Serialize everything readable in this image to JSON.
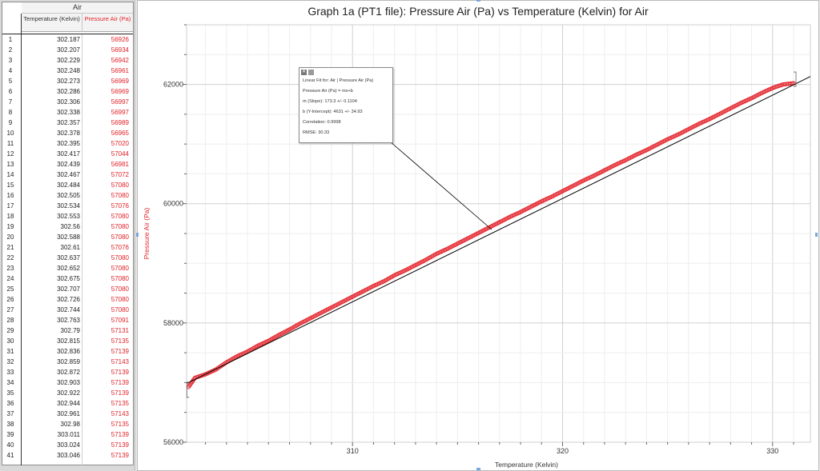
{
  "table": {
    "dataset_name": "Air",
    "col_temperature": "Temperature (Kelvin)",
    "col_pressure": "Pressure Air (Pa)",
    "rows": [
      {
        "n": "1",
        "t": "302.187",
        "p": "56926"
      },
      {
        "n": "2",
        "t": "302.207",
        "p": "56934"
      },
      {
        "n": "3",
        "t": "302.229",
        "p": "56942"
      },
      {
        "n": "4",
        "t": "302.248",
        "p": "56961"
      },
      {
        "n": "5",
        "t": "302.273",
        "p": "56969"
      },
      {
        "n": "6",
        "t": "302.286",
        "p": "56969"
      },
      {
        "n": "7",
        "t": "302.306",
        "p": "56997"
      },
      {
        "n": "8",
        "t": "302.338",
        "p": "56997"
      },
      {
        "n": "9",
        "t": "302.357",
        "p": "56989"
      },
      {
        "n": "10",
        "t": "302.378",
        "p": "56965"
      },
      {
        "n": "11",
        "t": "302.395",
        "p": "57020"
      },
      {
        "n": "12",
        "t": "302.417",
        "p": "57044"
      },
      {
        "n": "13",
        "t": "302.439",
        "p": "56981"
      },
      {
        "n": "14",
        "t": "302.467",
        "p": "57072"
      },
      {
        "n": "15",
        "t": "302.484",
        "p": "57080"
      },
      {
        "n": "16",
        "t": "302.505",
        "p": "57080"
      },
      {
        "n": "17",
        "t": "302.534",
        "p": "57076"
      },
      {
        "n": "18",
        "t": "302.553",
        "p": "57080"
      },
      {
        "n": "19",
        "t": "302.56",
        "p": "57080"
      },
      {
        "n": "20",
        "t": "302.588",
        "p": "57080"
      },
      {
        "n": "21",
        "t": "302.61",
        "p": "57076"
      },
      {
        "n": "22",
        "t": "302.637",
        "p": "57080"
      },
      {
        "n": "23",
        "t": "302.652",
        "p": "57080"
      },
      {
        "n": "24",
        "t": "302.675",
        "p": "57080"
      },
      {
        "n": "25",
        "t": "302.707",
        "p": "57080"
      },
      {
        "n": "26",
        "t": "302.726",
        "p": "57080"
      },
      {
        "n": "27",
        "t": "302.744",
        "p": "57080"
      },
      {
        "n": "28",
        "t": "302.763",
        "p": "57091"
      },
      {
        "n": "29",
        "t": "302.79",
        "p": "57131"
      },
      {
        "n": "30",
        "t": "302.815",
        "p": "57135"
      },
      {
        "n": "31",
        "t": "302.836",
        "p": "57139"
      },
      {
        "n": "32",
        "t": "302.859",
        "p": "57143"
      },
      {
        "n": "33",
        "t": "302.872",
        "p": "57139"
      },
      {
        "n": "34",
        "t": "302.903",
        "p": "57139"
      },
      {
        "n": "35",
        "t": "302.922",
        "p": "57139"
      },
      {
        "n": "36",
        "t": "302.944",
        "p": "57135"
      },
      {
        "n": "37",
        "t": "302.961",
        "p": "57143"
      },
      {
        "n": "38",
        "t": "302.98",
        "p": "57135"
      },
      {
        "n": "39",
        "t": "303.011",
        "p": "57139"
      },
      {
        "n": "40",
        "t": "303.024",
        "p": "57139"
      },
      {
        "n": "41",
        "t": "303.046",
        "p": "57139"
      }
    ]
  },
  "fit_box": {
    "line1": "Linear Fit for: Air | Pressure Air (Pa)",
    "line2": "Pressure Air (Pa) = mx+b",
    "line3": "m (Slope): 173.3 +/- 0.1104",
    "line4": "b (Y-Intercept): 4631 +/- 34.93",
    "line5": "Correlation: 0.9998",
    "line6": "RMSE: 30.33"
  },
  "chart_data": {
    "type": "scatter",
    "title": "Graph 1a (PT1 file): Pressure Air (Pa) vs Temperature (Kelvin) for Air",
    "xlabel": "Temperature (Kelvin)",
    "ylabel": "Pressure Air (Pa)",
    "xlim": [
      302.1,
      331.8
    ],
    "ylim": [
      56000,
      63000
    ],
    "xticks": [
      310,
      320,
      330
    ],
    "xtick_labels": [
      "310",
      "320",
      "330"
    ],
    "yticks": [
      56000,
      58000,
      60000,
      62000
    ],
    "ytick_labels": [
      "56000",
      "58000",
      "60000",
      "62000"
    ],
    "grid": true,
    "series": [
      {
        "name": "Pressure Air (Pa)",
        "color": "#e32027",
        "marker": "open-circle",
        "points": [
          [
            302.19,
            56926
          ],
          [
            302.5,
            57080
          ],
          [
            303.0,
            57139
          ],
          [
            303.5,
            57220
          ],
          [
            304.0,
            57340
          ],
          [
            304.5,
            57440
          ],
          [
            305.0,
            57520
          ],
          [
            305.5,
            57620
          ],
          [
            306.0,
            57700
          ],
          [
            306.5,
            57800
          ],
          [
            307.0,
            57890
          ],
          [
            307.5,
            57990
          ],
          [
            308.0,
            58080
          ],
          [
            308.5,
            58170
          ],
          [
            309.0,
            58260
          ],
          [
            309.5,
            58350
          ],
          [
            310.0,
            58440
          ],
          [
            310.5,
            58530
          ],
          [
            311.0,
            58620
          ],
          [
            311.5,
            58700
          ],
          [
            312.0,
            58800
          ],
          [
            312.5,
            58880
          ],
          [
            313.0,
            58970
          ],
          [
            313.5,
            59060
          ],
          [
            314.0,
            59160
          ],
          [
            314.5,
            59240
          ],
          [
            315.0,
            59330
          ],
          [
            315.5,
            59420
          ],
          [
            316.0,
            59510
          ],
          [
            316.5,
            59600
          ],
          [
            317.0,
            59690
          ],
          [
            317.5,
            59780
          ],
          [
            318.0,
            59860
          ],
          [
            318.5,
            59950
          ],
          [
            319.0,
            60040
          ],
          [
            319.5,
            60120
          ],
          [
            320.0,
            60210
          ],
          [
            320.5,
            60300
          ],
          [
            321.0,
            60390
          ],
          [
            321.5,
            60470
          ],
          [
            322.0,
            60560
          ],
          [
            322.5,
            60650
          ],
          [
            323.0,
            60730
          ],
          [
            323.5,
            60820
          ],
          [
            324.0,
            60900
          ],
          [
            324.5,
            60990
          ],
          [
            325.0,
            61080
          ],
          [
            325.5,
            61160
          ],
          [
            326.0,
            61250
          ],
          [
            326.5,
            61340
          ],
          [
            327.0,
            61420
          ],
          [
            327.5,
            61510
          ],
          [
            328.0,
            61600
          ],
          [
            328.5,
            61690
          ],
          [
            329.0,
            61770
          ],
          [
            329.5,
            61860
          ],
          [
            330.0,
            61940
          ],
          [
            330.5,
            62000
          ],
          [
            331.0,
            62020
          ]
        ]
      }
    ],
    "fit_line": {
      "slope": 173.3,
      "intercept": 4631,
      "color": "#000000"
    }
  }
}
